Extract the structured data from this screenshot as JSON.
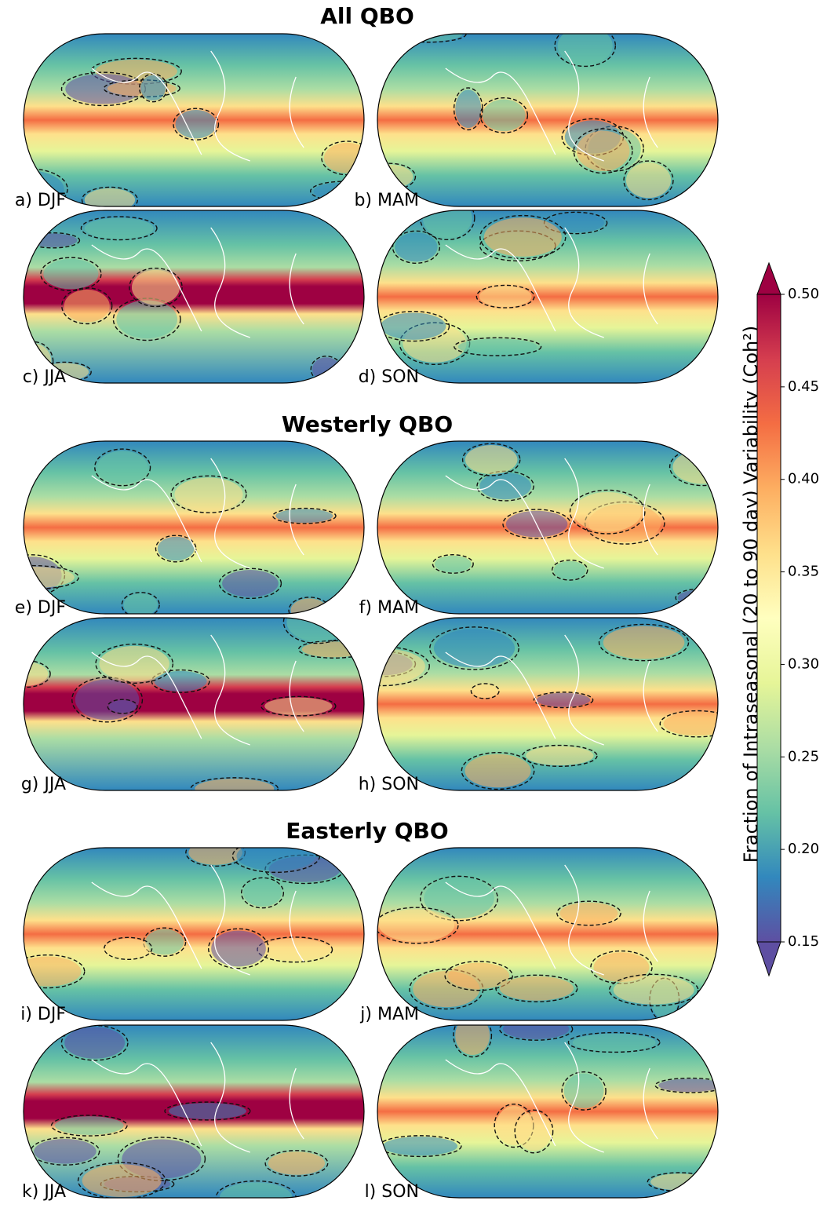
{
  "figure": {
    "groups": [
      {
        "title": "All QBO",
        "panels": [
          "a) DJF",
          "b) MAM",
          "c) JJA",
          "d) SON"
        ]
      },
      {
        "title": "Westerly QBO",
        "panels": [
          "e) DJF",
          "f) MAM",
          "g) JJA",
          "h) SON"
        ]
      },
      {
        "title": "Easterly QBO",
        "panels": [
          "i) DJF",
          "j) MAM",
          "k) JJA",
          "l) SON"
        ]
      }
    ],
    "colorbar": {
      "label": "Fraction of Intraseasonal (20 to 90 day) Variability (Coh²)",
      "lim": [
        0.15,
        0.5
      ],
      "ticks": [
        0.15,
        {
          "value": 0.2,
          "label": "0.20"
        },
        0.25,
        {
          "value": 0.3,
          "label": "0.30"
        },
        0.35,
        {
          "value": 0.4,
          "label": "0.40"
        },
        0.45,
        {
          "value": 0.5,
          "label": "0.50"
        }
      ],
      "colors": [
        "#5e4fa2",
        "#3288bd",
        "#66c2a5",
        "#abdda4",
        "#e6f598",
        "#ffffbf",
        "#fee08b",
        "#fdae61",
        "#f46d43",
        "#d53e4f",
        "#9e0142"
      ],
      "extend": "both"
    }
  }
}
